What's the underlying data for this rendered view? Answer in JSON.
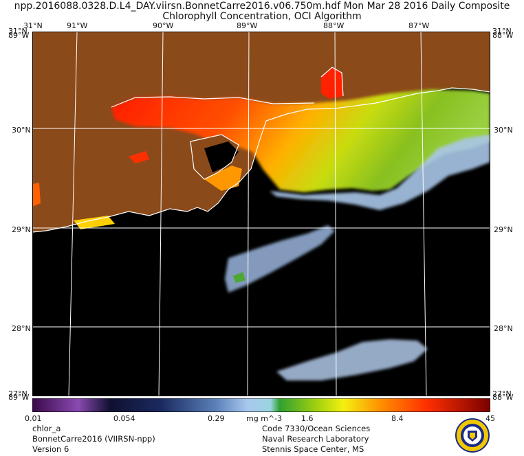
{
  "title_line1": "npp.2016088.0328.D.L4_DAY.viirsn.BonnetCarre2016.v06.750m.hdf   Mon Mar 28 2016 Daily Composite",
  "title_line2": "Chlorophyll Concentration, OCI Algorithm",
  "lon_labels": [
    "91°W",
    "90°W",
    "89°W",
    "88°W",
    "87°W"
  ],
  "lat_labels": {
    "top": "31°N",
    "l30": "30°N",
    "l29": "29°N",
    "l28": "28°N",
    "r30": "30°N",
    "r29": "29°N",
    "r28": "28°N"
  },
  "edge_labels": {
    "tl1": "31°N",
    "tl2": "89°W",
    "tr1": "31°N",
    "tr2": "88°W",
    "bl1": "27°N",
    "bl2": "89°W",
    "br1": "27°N",
    "br2": "88°W"
  },
  "colorbar": {
    "variable": "chlor_a",
    "units": "mg m^-3",
    "ticks": [
      "0.01",
      "0.054",
      "0.29",
      "1.6",
      "8.4",
      "45"
    ]
  },
  "footer_left": [
    "chlor_a",
    "BonnetCarre2016 (VIIRSN-npp)",
    "Version 6"
  ],
  "footer_right": [
    "Code 7330/Ocean Sciences",
    "Naval Research Laboratory",
    "Stennis Space Center, MS"
  ],
  "colors": {
    "land": "#8b4a1a",
    "ocean": "#000000",
    "coast": "#ffffff",
    "grid": "#ffffff"
  },
  "logo_icon": "nrl-seal-icon"
}
